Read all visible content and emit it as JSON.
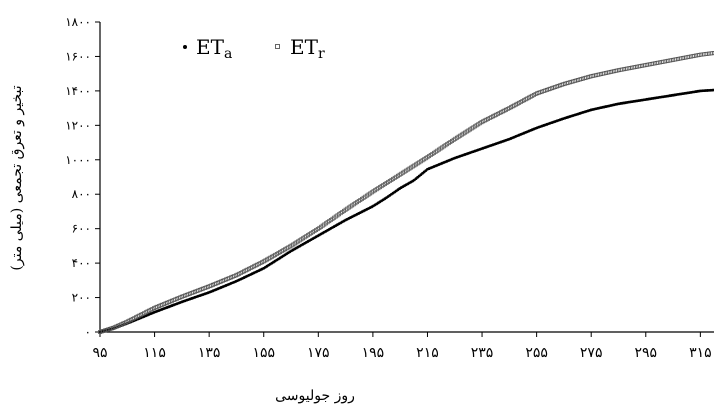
{
  "chart_data": {
    "type": "scatter",
    "title": "",
    "xlabel": "روز جولیوسی",
    "ylabel": "تبخیر و تعرق تجمعی (میلی متر)",
    "xlim": [
      95,
      320
    ],
    "ylim": [
      0,
      1800
    ],
    "x_ticks": [
      95,
      115,
      135,
      155,
      175,
      195,
      215,
      235,
      255,
      275,
      295,
      315
    ],
    "x_tick_labels": [
      "۹۵",
      "۱۱۵",
      "۱۳۵",
      "۱۵۵",
      "۱۷۵",
      "۱۹۵",
      "۲۱۵",
      "۲۳۵",
      "۲۵۵",
      "۲۷۵",
      "۲۹۵",
      "۳۱۵"
    ],
    "y_ticks": [
      0,
      200,
      400,
      600,
      800,
      1000,
      1200,
      1400,
      1600,
      1800
    ],
    "y_tick_labels": [
      "۰",
      "۲۰۰",
      "۴۰۰",
      "۶۰۰",
      "۸۰۰",
      "۱۰۰۰",
      "۱۲۰۰",
      "۱۴۰۰",
      "۱۶۰۰",
      "۱۸۰۰"
    ],
    "grid": false,
    "legend_position": "top-left",
    "series": [
      {
        "name": "ETa",
        "legend_main": "ET",
        "legend_sub": "a",
        "marker": "filled-dot",
        "color": "#000000",
        "x": [
          95,
          100,
          105,
          115,
          125,
          135,
          145,
          155,
          160,
          165,
          175,
          185,
          195,
          200,
          205,
          210,
          215,
          225,
          235,
          245,
          255,
          265,
          275,
          285,
          295,
          305,
          315,
          320
        ],
        "y": [
          0,
          20,
          50,
          115,
          175,
          230,
          295,
          370,
          420,
          470,
          560,
          650,
          730,
          780,
          835,
          880,
          945,
          1010,
          1065,
          1120,
          1185,
          1240,
          1290,
          1325,
          1350,
          1375,
          1400,
          1405
        ]
      },
      {
        "name": "ETr",
        "legend_main": "ET",
        "legend_sub": "r",
        "marker": "hollow-square",
        "color": "#555555",
        "x": [
          95,
          100,
          105,
          115,
          125,
          135,
          145,
          155,
          165,
          175,
          185,
          195,
          205,
          215,
          225,
          235,
          245,
          255,
          265,
          275,
          285,
          295,
          305,
          315,
          320
        ],
        "y": [
          0,
          25,
          60,
          140,
          205,
          265,
          330,
          410,
          500,
          600,
          710,
          815,
          915,
          1015,
          1120,
          1220,
          1300,
          1385,
          1440,
          1485,
          1520,
          1550,
          1580,
          1610,
          1620
        ]
      }
    ]
  }
}
